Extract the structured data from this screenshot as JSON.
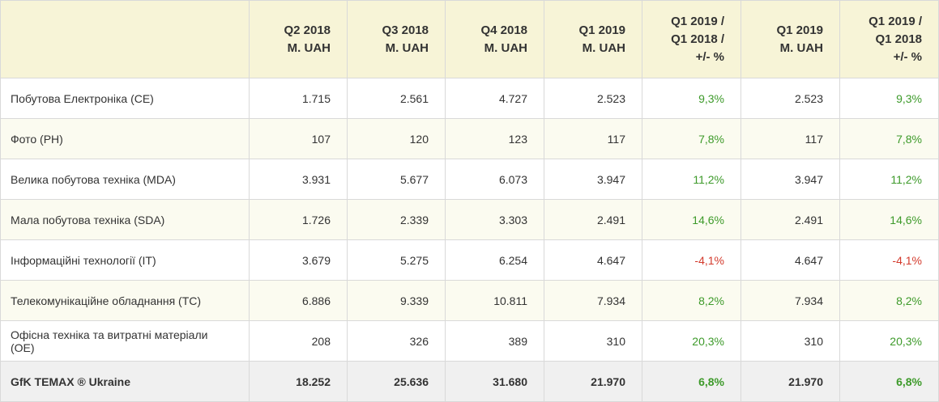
{
  "colors": {
    "header_bg": "#f7f4d7",
    "stripe_bg": "#fbfbf0",
    "total_bg": "#f0f0f0",
    "positive": "#3d9a2a",
    "negative": "#d33a2c",
    "border": "#d9d9d9"
  },
  "header": {
    "columns": [
      {
        "lines": [
          "",
          ""
        ]
      },
      {
        "lines": [
          "Q2 2018",
          "M. UAH"
        ]
      },
      {
        "lines": [
          "Q3 2018",
          "M. UAH"
        ]
      },
      {
        "lines": [
          "Q4 2018",
          "M. UAH"
        ]
      },
      {
        "lines": [
          "Q1 2019",
          "M. UAH"
        ]
      },
      {
        "lines": [
          "Q1 2019 /",
          "Q1 2018 /",
          "+/- %"
        ]
      },
      {
        "lines": [
          "Q1 2019",
          "M. UAH"
        ]
      },
      {
        "lines": [
          "Q1 2019 /",
          "Q1 2018",
          "+/- %"
        ]
      }
    ]
  },
  "rows": [
    {
      "label": "Побутова Електроніка (CE)",
      "q2_2018": "1.715",
      "q3_2018": "2.561",
      "q4_2018": "4.727",
      "q1_2019": "2.523",
      "change": "9,3%",
      "q1_2019_b": "2.523",
      "change_b": "9,3%",
      "trend": "pos"
    },
    {
      "label": "Фото (PH)",
      "q2_2018": "107",
      "q3_2018": "120",
      "q4_2018": "123",
      "q1_2019": "117",
      "change": "7,8%",
      "q1_2019_b": "117",
      "change_b": "7,8%",
      "trend": "pos"
    },
    {
      "label": "Велика побутова техніка (MDA)",
      "q2_2018": "3.931",
      "q3_2018": "5.677",
      "q4_2018": "6.073",
      "q1_2019": "3.947",
      "change": "11,2%",
      "q1_2019_b": "3.947",
      "change_b": "11,2%",
      "trend": "pos"
    },
    {
      "label": "Мала побутова техніка (SDA)",
      "q2_2018": "1.726",
      "q3_2018": "2.339",
      "q4_2018": "3.303",
      "q1_2019": "2.491",
      "change": "14,6%",
      "q1_2019_b": "2.491",
      "change_b": "14,6%",
      "trend": "pos"
    },
    {
      "label": "Інформаційні технології (IT)",
      "q2_2018": "3.679",
      "q3_2018": "5.275",
      "q4_2018": "6.254",
      "q1_2019": "4.647",
      "change": "-4,1%",
      "q1_2019_b": "4.647",
      "change_b": "-4,1%",
      "trend": "neg"
    },
    {
      "label": "Телекомунікаційне обладнання (TC)",
      "q2_2018": "6.886",
      "q3_2018": "9.339",
      "q4_2018": "10.811",
      "q1_2019": "7.934",
      "change": "8,2%",
      "q1_2019_b": "7.934",
      "change_b": "8,2%",
      "trend": "pos"
    },
    {
      "label": "Офісна техніка та витратні матеріали (OE)",
      "q2_2018": "208",
      "q3_2018": "326",
      "q4_2018": "389",
      "q1_2019": "310",
      "change": "20,3%",
      "q1_2019_b": "310",
      "change_b": "20,3%",
      "trend": "pos"
    }
  ],
  "total": {
    "label": "GfK TEMAX ® Ukraine",
    "q2_2018": "18.252",
    "q3_2018": "25.636",
    "q4_2018": "31.680",
    "q1_2019": "21.970",
    "change": "6,8%",
    "q1_2019_b": "21.970",
    "change_b": "6,8%",
    "trend": "pos"
  }
}
